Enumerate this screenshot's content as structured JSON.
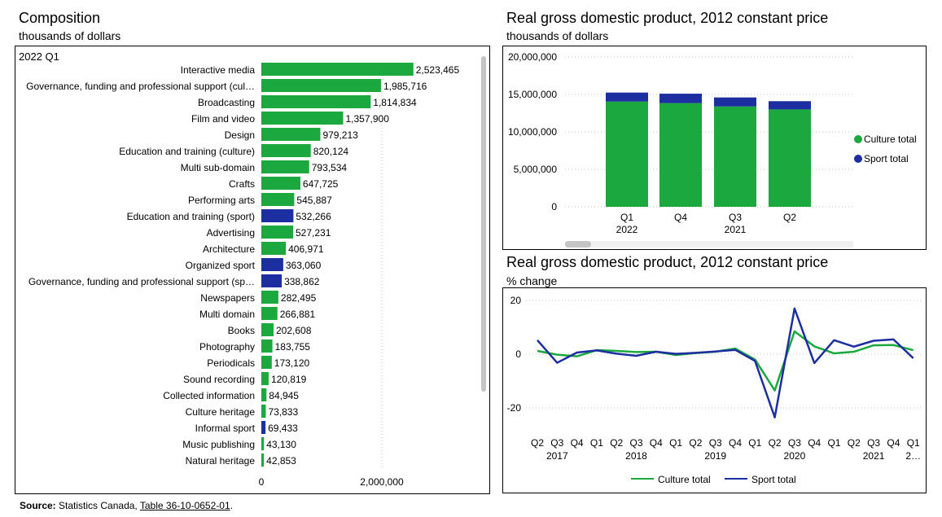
{
  "composition": {
    "title": "Composition",
    "subtitle": "thousands of dollars",
    "period": "2022 Q1"
  },
  "gdp_level": {
    "title": "Real gross domestic product, 2012 constant price",
    "subtitle": "thousands of dollars"
  },
  "gdp_change": {
    "title": "Real gross domestic product, 2012 constant price",
    "subtitle": "% change"
  },
  "source": {
    "label": "Source:",
    "text": "Statistics Canada,",
    "link": "Table 36-10-0652-01",
    "end": "."
  },
  "colors": {
    "culture": "#1ba83e",
    "sport": "#1c2ea0"
  },
  "chart_data": [
    {
      "type": "bar",
      "orientation": "horizontal",
      "categories": [
        "Interactive media",
        "Governance, funding and professional support (cul…",
        "Broadcasting",
        "Film and video",
        "Design",
        "Education and training (culture)",
        "Multi sub-domain",
        "Crafts",
        "Performing arts",
        "Education and training (sport)",
        "Advertising",
        "Architecture",
        "Organized sport",
        "Governance, funding and professional support (sp…",
        "Newspapers",
        "Multi domain",
        "Books",
        "Photography",
        "Periodicals",
        "Sound recording",
        "Collected information",
        "Culture heritage",
        "Informal sport",
        "Music publishing",
        "Natural heritage"
      ],
      "values": [
        2523465,
        1985716,
        1814834,
        1357900,
        979213,
        820124,
        793534,
        647725,
        545887,
        532266,
        527231,
        406971,
        363060,
        338862,
        282495,
        266881,
        202608,
        183755,
        173120,
        120819,
        84945,
        73833,
        69433,
        43130,
        42853
      ],
      "value_labels": [
        "2,523,465",
        "1,985,716",
        "1,814,834",
        "1,357,900",
        "979,213",
        "820,124",
        "793,534",
        "647,725",
        "545,887",
        "532,266",
        "527,231",
        "406,971",
        "363,060",
        "338,862",
        "282,495",
        "266,881",
        "202,608",
        "183,755",
        "173,120",
        "120,819",
        "84,945",
        "73,833",
        "69,433",
        "43,130",
        "42,853"
      ],
      "domain": [
        "culture",
        "culture",
        "culture",
        "culture",
        "culture",
        "culture",
        "culture",
        "culture",
        "culture",
        "sport",
        "culture",
        "culture",
        "sport",
        "sport",
        "culture",
        "culture",
        "culture",
        "culture",
        "culture",
        "culture",
        "culture",
        "culture",
        "sport",
        "culture",
        "culture"
      ],
      "xticks": [
        0,
        2000000
      ],
      "xtick_labels": [
        "0",
        "2,000,000"
      ],
      "xlim": [
        0,
        3100000
      ],
      "grid": true
    },
    {
      "type": "bar",
      "stacked": true,
      "categories": [
        "Q1",
        "Q4",
        "Q3",
        "Q2"
      ],
      "year_labels": [
        "2022",
        "",
        "2021",
        ""
      ],
      "series": [
        {
          "name": "Culture total",
          "values": [
            14050000,
            13850000,
            13400000,
            13000000
          ]
        },
        {
          "name": "Sport total",
          "values": [
            1200000,
            1250000,
            1200000,
            1100000
          ]
        }
      ],
      "yticks": [
        0,
        5000000,
        10000000,
        15000000,
        20000000
      ],
      "ytick_labels": [
        "0",
        "5,000,000",
        "10,000,000",
        "15,000,000",
        "20,000,000"
      ],
      "ylim": [
        0,
        20000000
      ],
      "legend": "right",
      "grid": true
    },
    {
      "type": "line",
      "x": [
        "Q2",
        "Q3",
        "Q4",
        "Q1",
        "Q2",
        "Q3",
        "Q4",
        "Q1",
        "Q2",
        "Q3",
        "Q4",
        "Q1",
        "Q2",
        "Q3",
        "Q4",
        "Q1",
        "Q2",
        "Q3",
        "Q4",
        "Q1"
      ],
      "year_labels": [
        "",
        "2017",
        "",
        "",
        "",
        "2018",
        "",
        "",
        "",
        "2019",
        "",
        "",
        "",
        "2020",
        "",
        "",
        "",
        "2021",
        "",
        "2…"
      ],
      "series": [
        {
          "name": "Culture total",
          "values": [
            1.2,
            -0.2,
            -0.8,
            1.5,
            1.2,
            0.8,
            0.9,
            -0.3,
            0.4,
            0.9,
            2.1,
            -2.0,
            -13.5,
            8.5,
            2.9,
            0.3,
            0.9,
            3.3,
            3.4,
            1.5
          ]
        },
        {
          "name": "Sport total",
          "values": [
            5.2,
            -3.2,
            0.6,
            1.4,
            0.2,
            -0.6,
            0.9,
            0.1,
            0.5,
            1.0,
            1.6,
            -2.5,
            -23.5,
            17.0,
            -3.3,
            5.2,
            2.8,
            5.0,
            5.5,
            -1.5
          ]
        }
      ],
      "yticks": [
        -20,
        0,
        20
      ],
      "ytick_labels": [
        "-20",
        "0",
        "20"
      ],
      "ylim": [
        -27,
        21
      ],
      "legend": "bottom",
      "grid": true
    }
  ]
}
